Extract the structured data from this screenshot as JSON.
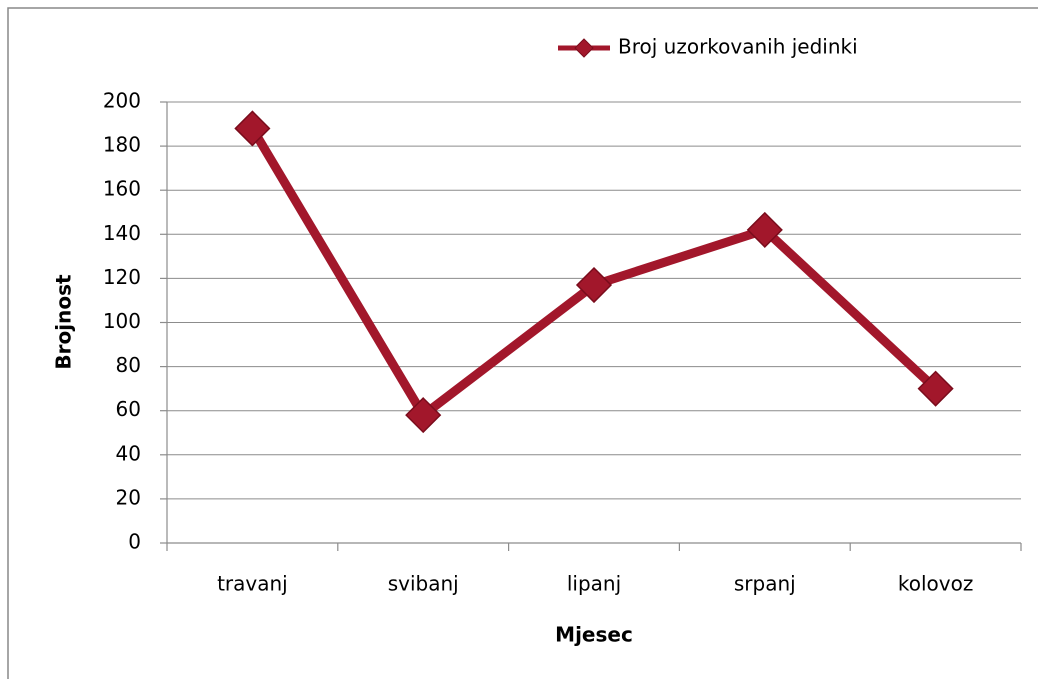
{
  "chart_data": {
    "type": "line",
    "categories": [
      "travanj",
      "svibanj",
      "lipanj",
      "srpanj",
      "kolovoz"
    ],
    "series": [
      {
        "name": "Broj uzorkovanih jedinki",
        "color": "#a2172b",
        "values": [
          188,
          58,
          117,
          142,
          70
        ]
      }
    ],
    "x_label": "Mjesec",
    "y_label": "Brojnost",
    "ylim": [
      0,
      200
    ],
    "yticks": [
      0,
      20,
      40,
      60,
      80,
      100,
      120,
      140,
      160,
      180,
      200
    ],
    "grid": true,
    "legend": "top",
    "marker": "diamond"
  }
}
